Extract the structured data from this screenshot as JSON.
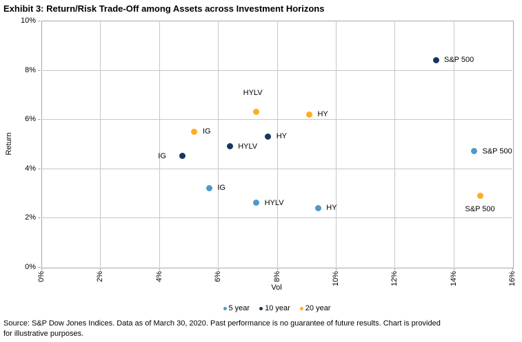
{
  "chart_data": {
    "type": "scatter",
    "title": "Exhibit 3: Return/Risk Trade-Off among Assets across Investment Horizons",
    "xlabel": "Vol",
    "ylabel": "Return",
    "xlim": [
      0,
      16
    ],
    "ylim": [
      0,
      10
    ],
    "grid": true,
    "legend_position": "bottom",
    "x_ticks": {
      "values": [
        0,
        2,
        4,
        6,
        8,
        10,
        12,
        14,
        16
      ],
      "labels": [
        "0%",
        "2%",
        "4%",
        "6%",
        "8%",
        "10%",
        "12%",
        "14%",
        "16%"
      ]
    },
    "y_ticks": {
      "values": [
        0,
        2,
        4,
        6,
        8,
        10
      ],
      "labels": [
        "0%",
        "2%",
        "4%",
        "6%",
        "8%",
        "10%"
      ]
    },
    "series": [
      {
        "name": "5 year",
        "color": "#4E9AC6",
        "points": [
          {
            "label": "IG",
            "x": 5.7,
            "y": 3.2,
            "label_pos": "right"
          },
          {
            "label": "HYLV",
            "x": 7.3,
            "y": 2.6,
            "label_pos": "right"
          },
          {
            "label": "HY",
            "x": 9.4,
            "y": 2.4,
            "label_pos": "right"
          },
          {
            "label": "S&P 500",
            "x": 14.7,
            "y": 4.7,
            "label_pos": "right"
          }
        ]
      },
      {
        "name": "10 year",
        "color": "#17375E",
        "points": [
          {
            "label": "IG",
            "x": 4.8,
            "y": 4.5,
            "label_pos": "left"
          },
          {
            "label": "HYLV",
            "x": 6.4,
            "y": 4.9,
            "label_pos": "right"
          },
          {
            "label": "HY",
            "x": 7.7,
            "y": 5.3,
            "label_pos": "right"
          },
          {
            "label": "S&P 500",
            "x": 13.4,
            "y": 8.4,
            "label_pos": "right"
          }
        ]
      },
      {
        "name": "20 year",
        "color": "#FFAD1F",
        "points": [
          {
            "label": "IG",
            "x": 5.2,
            "y": 5.5,
            "label_pos": "right"
          },
          {
            "label": "HYLV",
            "x": 7.3,
            "y": 6.3,
            "label_pos": "above"
          },
          {
            "label": "HY",
            "x": 9.1,
            "y": 6.2,
            "label_pos": "right"
          },
          {
            "label": "S&P 500",
            "x": 14.9,
            "y": 2.9,
            "label_pos": "below"
          }
        ]
      }
    ]
  },
  "colors": {
    "grid": "#C6C6C6",
    "axis_border": "#A6A6A6"
  },
  "footer": {
    "lines": [
      "Source: S&P Dow Jones Indices. Data as of March 30, 2020. Past performance is no guarantee of future results. Chart is provided",
      "for illustrative purposes."
    ]
  }
}
